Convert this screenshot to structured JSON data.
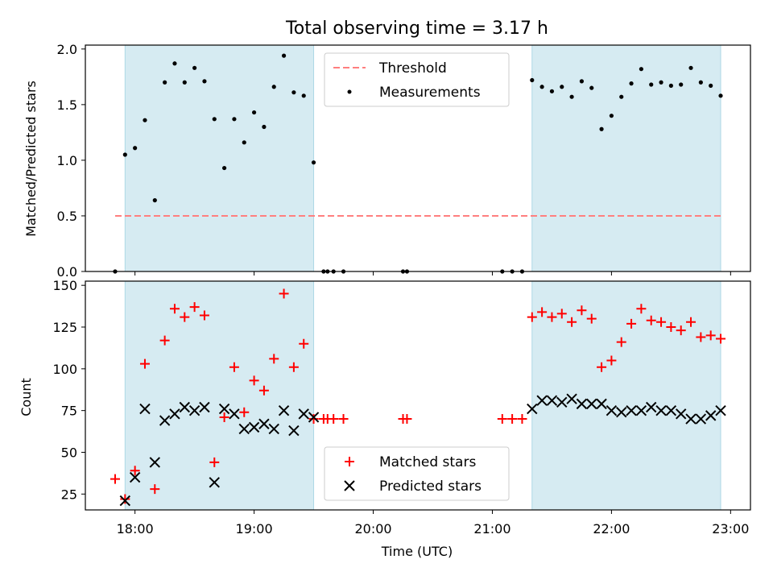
{
  "title": "Total observing time = 3.17 h",
  "colors": {
    "band": "#add8e6",
    "threshold": "#ff7f7f",
    "matched": "#ff0000",
    "predicted": "#000000",
    "measurement": "#000000"
  },
  "chart_data": [
    {
      "type": "scatter",
      "panel": "top",
      "ylabel": "Matched/Predicted stars",
      "xlim": [
        "17:35",
        "23:10"
      ],
      "ylim": [
        0,
        2.0
      ],
      "yticks": [
        "0.0",
        "0.5",
        "1.0",
        "1.5",
        "2.0"
      ],
      "shaded_intervals": [
        [
          "17:55",
          "19:30"
        ],
        [
          "21:20",
          "22:55"
        ]
      ],
      "threshold": {
        "name": "Threshold",
        "x": [
          "17:50",
          "22:55"
        ],
        "y": 0.5
      },
      "legend": {
        "placement": "top-center",
        "entries": [
          "Threshold",
          "Measurements"
        ]
      },
      "series": [
        {
          "name": "Measurements",
          "x": [
            "17:50",
            "17:55",
            "18:00",
            "18:05",
            "18:10",
            "18:15",
            "18:20",
            "18:25",
            "18:30",
            "18:35",
            "18:40",
            "18:45",
            "18:50",
            "18:55",
            "19:00",
            "19:05",
            "19:10",
            "19:15",
            "19:20",
            "19:25",
            "19:30",
            "19:35",
            "19:37",
            "19:40",
            "19:45",
            "20:15",
            "20:17",
            "21:05",
            "21:10",
            "21:15",
            "21:20",
            "21:25",
            "21:30",
            "21:35",
            "21:40",
            "21:45",
            "21:50",
            "21:55",
            "22:00",
            "22:05",
            "22:10",
            "22:15",
            "22:20",
            "22:25",
            "22:30",
            "22:35",
            "22:40",
            "22:45",
            "22:50",
            "22:55"
          ],
          "y": [
            0.0,
            1.05,
            1.11,
            1.36,
            0.64,
            1.7,
            1.87,
            1.7,
            1.83,
            1.71,
            1.37,
            0.93,
            1.37,
            1.16,
            1.43,
            1.3,
            1.66,
            1.94,
            1.61,
            1.58,
            0.98,
            0.0,
            0.0,
            0.0,
            0.0,
            0.0,
            0.0,
            0.0,
            0.0,
            0.0,
            1.72,
            1.66,
            1.62,
            1.66,
            1.57,
            1.71,
            1.65,
            1.28,
            1.4,
            1.57,
            1.69,
            1.82,
            1.68,
            1.7,
            1.67,
            1.68,
            1.83,
            1.7,
            1.67,
            1.58
          ]
        }
      ]
    },
    {
      "type": "scatter",
      "panel": "bottom",
      "xlabel": "Time (UTC)",
      "ylabel": "Count",
      "xlim": [
        "17:35",
        "23:10"
      ],
      "ylim": [
        15,
        152
      ],
      "xticks": [
        "18:00",
        "19:00",
        "20:00",
        "21:00",
        "22:00",
        "23:00"
      ],
      "yticks": [
        "25",
        "50",
        "75",
        "100",
        "125",
        "150"
      ],
      "shaded_intervals": [
        [
          "17:55",
          "19:30"
        ],
        [
          "21:20",
          "22:55"
        ]
      ],
      "legend": {
        "placement": "bottom-center",
        "entries": [
          "Matched stars",
          "Predicted stars"
        ]
      },
      "series": [
        {
          "name": "Matched stars",
          "marker": "+",
          "x": [
            "17:50",
            "17:55",
            "18:00",
            "18:05",
            "18:10",
            "18:15",
            "18:20",
            "18:25",
            "18:30",
            "18:35",
            "18:40",
            "18:45",
            "18:50",
            "18:55",
            "19:00",
            "19:05",
            "19:10",
            "19:15",
            "19:20",
            "19:25",
            "19:30",
            "19:35",
            "19:37",
            "19:40",
            "19:45",
            "20:15",
            "20:17",
            "21:05",
            "21:10",
            "21:15",
            "21:20",
            "21:25",
            "21:30",
            "21:35",
            "21:40",
            "21:45",
            "21:50",
            "21:55",
            "22:00",
            "22:05",
            "22:10",
            "22:15",
            "22:20",
            "22:25",
            "22:30",
            "22:35",
            "22:40",
            "22:45",
            "22:50",
            "22:55"
          ],
          "y": [
            34,
            22,
            39,
            103,
            28,
            117,
            136,
            131,
            137,
            132,
            44,
            71,
            101,
            74,
            93,
            87,
            106,
            145,
            101,
            115,
            70,
            70,
            70,
            70,
            70,
            70,
            70,
            70,
            70,
            70,
            131,
            134,
            131,
            133,
            128,
            135,
            130,
            101,
            105,
            116,
            127,
            136,
            129,
            128,
            125,
            123,
            128,
            119,
            120,
            118
          ]
        },
        {
          "name": "Predicted stars",
          "marker": "x",
          "x": [
            "17:55",
            "18:00",
            "18:05",
            "18:10",
            "18:15",
            "18:20",
            "18:25",
            "18:30",
            "18:35",
            "18:40",
            "18:45",
            "18:50",
            "18:55",
            "19:00",
            "19:05",
            "19:10",
            "19:15",
            "19:20",
            "19:25",
            "19:30",
            "21:20",
            "21:25",
            "21:30",
            "21:35",
            "21:40",
            "21:45",
            "21:50",
            "21:55",
            "22:00",
            "22:05",
            "22:10",
            "22:15",
            "22:20",
            "22:25",
            "22:30",
            "22:35",
            "22:40",
            "22:45",
            "22:50",
            "22:55"
          ],
          "y": [
            21,
            35,
            76,
            44,
            69,
            73,
            77,
            75,
            77,
            32,
            76,
            73,
            64,
            65,
            67,
            64,
            75,
            63,
            73,
            71,
            76,
            81,
            81,
            80,
            82,
            79,
            79,
            79,
            75,
            74,
            75,
            75,
            77,
            75,
            75,
            73,
            70,
            70,
            72,
            75
          ]
        }
      ]
    }
  ]
}
